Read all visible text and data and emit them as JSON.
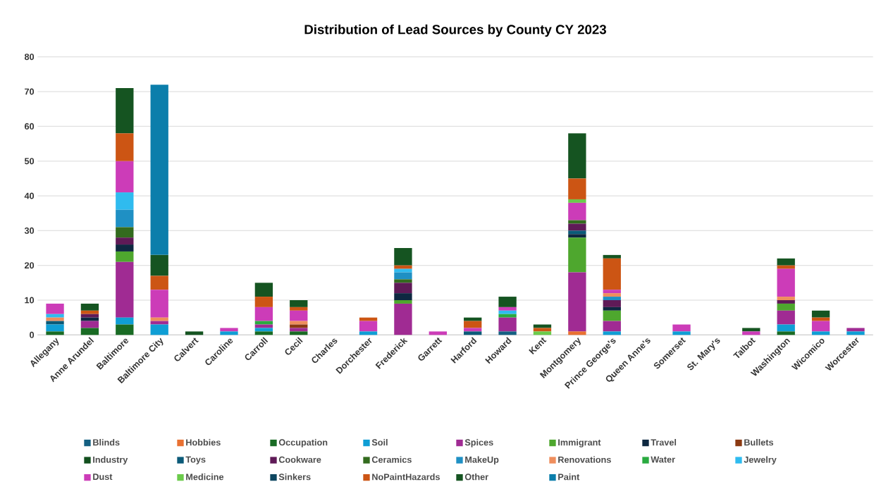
{
  "chart_data": {
    "type": "bar",
    "stacked": true,
    "title": "Distribution of Lead Sources by County CY 2023",
    "categories": [
      "Allegany",
      "Anne Arundel",
      "Baltimore",
      "Baltimore City",
      "Calvert",
      "Caroline",
      "Carroll",
      "Cecil",
      "Charles",
      "Dorchester",
      "Frederick",
      "Garrett",
      "Harford",
      "Howard",
      "Kent",
      "Montgomery",
      "Prince George's",
      "Queen Anne's",
      "Somerset",
      "St. Mary's",
      "Talbot",
      "Washington",
      "Wicomico",
      "Worcester"
    ],
    "series": [
      {
        "name": "Blinds",
        "color": "#156082",
        "values": [
          0,
          0,
          0,
          0,
          0,
          0,
          0,
          0,
          0,
          0,
          0,
          0,
          0,
          1,
          0,
          0,
          0,
          0,
          0,
          0,
          0,
          0,
          0,
          0
        ]
      },
      {
        "name": "Hobbies",
        "color": "#e97132",
        "values": [
          0,
          0,
          0,
          0,
          0,
          0,
          0,
          0,
          0,
          0,
          0,
          0,
          0,
          0,
          0,
          1,
          0,
          0,
          0,
          0,
          0,
          0,
          0,
          0
        ]
      },
      {
        "name": "Occupation",
        "color": "#196b24",
        "values": [
          1,
          2,
          3,
          0,
          0,
          0,
          1,
          1,
          0,
          0,
          0,
          0,
          0,
          0,
          0,
          0,
          0,
          0,
          0,
          0,
          0,
          1,
          0,
          0
        ]
      },
      {
        "name": "Soil",
        "color": "#0f9ed5",
        "values": [
          2,
          0,
          2,
          3,
          0,
          1,
          1,
          0,
          0,
          1,
          0,
          0,
          0,
          0,
          0,
          0,
          1,
          0,
          1,
          0,
          0,
          2,
          1,
          1
        ]
      },
      {
        "name": "Spices",
        "color": "#a02b93",
        "values": [
          0,
          2,
          16,
          1,
          0,
          0,
          1,
          1,
          0,
          0,
          9,
          0,
          0,
          4,
          0,
          17,
          3,
          0,
          0,
          0,
          0,
          4,
          0,
          1
        ]
      },
      {
        "name": "Immigrant",
        "color": "#4ea72e",
        "values": [
          0,
          0,
          3,
          0,
          0,
          0,
          0,
          0,
          0,
          0,
          1,
          0,
          0,
          0,
          0,
          10,
          3,
          0,
          0,
          0,
          0,
          2,
          0,
          0
        ]
      },
      {
        "name": "Travel",
        "color": "#0e2841",
        "values": [
          0,
          1,
          2,
          0,
          0,
          0,
          0,
          0,
          0,
          0,
          2,
          0,
          0,
          0,
          0,
          1,
          1,
          0,
          0,
          0,
          0,
          0,
          0,
          0
        ]
      },
      {
        "name": "Bullets",
        "color": "#8b3a12",
        "values": [
          0,
          0,
          0,
          0,
          0,
          0,
          0,
          1,
          0,
          0,
          0,
          0,
          0,
          0,
          0,
          0,
          0,
          0,
          0,
          0,
          0,
          0,
          0,
          0
        ]
      },
      {
        "name": "Industry",
        "color": "#124f1e",
        "values": [
          0,
          0,
          0,
          0,
          0,
          0,
          0,
          0,
          0,
          0,
          0,
          0,
          0,
          0,
          0,
          0,
          0,
          0,
          0,
          0,
          0,
          0,
          0,
          0
        ]
      },
      {
        "name": "Toys",
        "color": "#0b5a78",
        "values": [
          1,
          0,
          0,
          0,
          0,
          0,
          0,
          0,
          0,
          0,
          0,
          0,
          1,
          0,
          0,
          1,
          0,
          0,
          0,
          0,
          0,
          0,
          0,
          0
        ]
      },
      {
        "name": "Cookware",
        "color": "#5f1a57",
        "values": [
          0,
          1,
          2,
          0,
          0,
          0,
          0,
          0,
          0,
          0,
          3,
          0,
          0,
          0,
          0,
          2,
          2,
          0,
          0,
          0,
          0,
          1,
          0,
          0
        ]
      },
      {
        "name": "Ceramics",
        "color": "#336b1e",
        "values": [
          0,
          0,
          3,
          0,
          0,
          0,
          0,
          0,
          0,
          0,
          1,
          0,
          0,
          0,
          0,
          1,
          0,
          0,
          0,
          0,
          0,
          0,
          0,
          0
        ]
      },
      {
        "name": "MakeUp",
        "color": "#1f90c4",
        "values": [
          0,
          0,
          5,
          0,
          0,
          0,
          0,
          0,
          0,
          0,
          2,
          0,
          0,
          0,
          0,
          0,
          1,
          0,
          0,
          0,
          0,
          0,
          0,
          0
        ]
      },
      {
        "name": "Renovations",
        "color": "#ef8e5d",
        "values": [
          1,
          0,
          0,
          1,
          0,
          0,
          0,
          1,
          0,
          0,
          0,
          0,
          0,
          0,
          0,
          0,
          1,
          0,
          0,
          0,
          0,
          1,
          0,
          0
        ]
      },
      {
        "name": "Water",
        "color": "#2aaa40",
        "values": [
          0,
          0,
          0,
          0,
          0,
          0,
          1,
          0,
          0,
          0,
          0,
          0,
          0,
          1,
          0,
          0,
          0,
          0,
          0,
          0,
          0,
          0,
          0,
          0
        ]
      },
      {
        "name": "Jewelry",
        "color": "#2fbbef",
        "values": [
          1,
          0,
          5,
          0,
          0,
          0,
          0,
          0,
          0,
          0,
          1,
          0,
          0,
          1,
          0,
          0,
          0,
          0,
          0,
          0,
          0,
          0,
          0,
          0
        ]
      },
      {
        "name": "Dust",
        "color": "#cc3cb8",
        "values": [
          3,
          0,
          9,
          8,
          0,
          1,
          4,
          3,
          0,
          3,
          0,
          1,
          1,
          1,
          0,
          5,
          1,
          0,
          2,
          0,
          1,
          8,
          3,
          0
        ]
      },
      {
        "name": "Medicine",
        "color": "#6bcb4b",
        "values": [
          0,
          0,
          0,
          0,
          0,
          0,
          0,
          0,
          0,
          0,
          0,
          0,
          0,
          0,
          1,
          1,
          0,
          0,
          0,
          0,
          0,
          0,
          0,
          0
        ]
      },
      {
        "name": "Sinkers",
        "color": "#0d4660",
        "values": [
          0,
          0,
          0,
          0,
          0,
          0,
          0,
          0,
          0,
          0,
          0,
          0,
          0,
          0,
          0,
          0,
          0,
          0,
          0,
          0,
          0,
          0,
          0,
          0
        ]
      },
      {
        "name": "NoPaintHazards",
        "color": "#cc5514",
        "values": [
          0,
          1,
          8,
          4,
          0,
          0,
          3,
          1,
          0,
          1,
          1,
          0,
          2,
          0,
          1,
          6,
          9,
          0,
          0,
          0,
          0,
          1,
          1,
          0
        ]
      },
      {
        "name": "Other",
        "color": "#155421",
        "values": [
          0,
          2,
          13,
          6,
          1,
          0,
          4,
          2,
          0,
          0,
          5,
          0,
          1,
          3,
          1,
          13,
          1,
          0,
          0,
          0,
          1,
          2,
          2,
          0
        ]
      },
      {
        "name": "Paint",
        "color": "#0b7eab",
        "values": [
          0,
          0,
          0,
          49,
          0,
          0,
          0,
          0,
          0,
          0,
          0,
          0,
          0,
          0,
          0,
          0,
          0,
          0,
          0,
          0,
          0,
          0,
          0,
          0
        ]
      }
    ],
    "ylim": [
      0,
      80
    ],
    "yticks": [
      0,
      10,
      20,
      30,
      40,
      50,
      60,
      70,
      80
    ],
    "grid": "y",
    "legend": "bottom"
  }
}
